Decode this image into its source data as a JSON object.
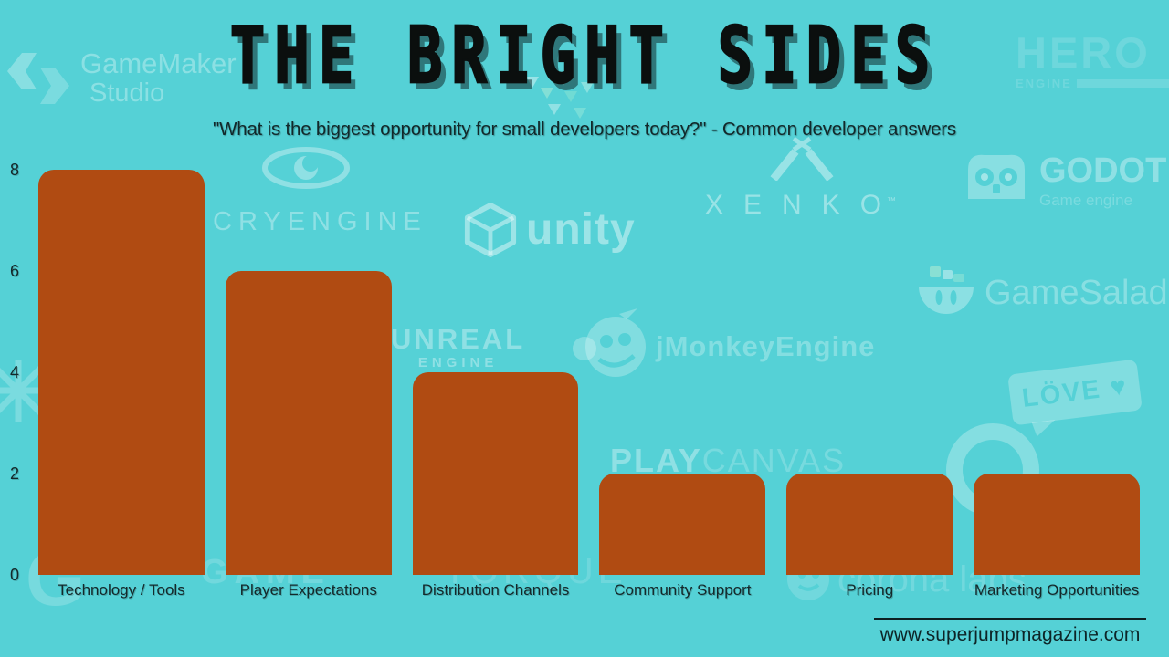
{
  "title": "THE BRIGHT SIDES",
  "subtitle": "\"What is the biggest opportunity for small developers today?\" - Common developer answers",
  "chart_data": {
    "type": "bar",
    "title": "THE BRIGHT SIDES",
    "subtitle": "\"What is the biggest opportunity for small developers today?\" - Common developer answers",
    "categories": [
      "Technology / Tools",
      "Player Expectations",
      "Distribution Channels",
      "Community Support",
      "Pricing",
      "Marketing Opportunities"
    ],
    "values": [
      8,
      6,
      4,
      2,
      2,
      2
    ],
    "xlabel": "",
    "ylabel": "",
    "ylim": [
      0,
      8
    ],
    "yticks": [
      0,
      2,
      4,
      6,
      8
    ],
    "grid": false,
    "legend": false,
    "bar_color": "#b04b12",
    "bar_corner_radius_px": 17
  },
  "footer": {
    "website": "www.superjumpmagazine.com"
  },
  "colors": {
    "background": "#55d1d6",
    "bar": "#b04b12",
    "title_text": "#0b0f0e",
    "label_text": "#14282a",
    "watermark": "rgba(255,255,255,0.30)"
  },
  "watermarks": {
    "gamemaker": {
      "line1": "GameMaker",
      "line2": "Studio"
    },
    "hero": {
      "text": "HERO",
      "sub": "ENGINE"
    },
    "cryengine": {
      "text": "CRYENGINE"
    },
    "unity": {
      "text": "unity"
    },
    "xenko": {
      "text": "XENKO",
      "tm": "™"
    },
    "godot": {
      "text": "GODOT",
      "sub": "Game engine"
    },
    "gamesalad": {
      "text": "GameSalad"
    },
    "unreal": {
      "line1": "UNREAL",
      "line2": "ENGINE"
    },
    "jmonkey": {
      "text": "jMonkeyEngine"
    },
    "love": {
      "text": "LÖVE ♥"
    },
    "playcanvas": {
      "part1": "PLAY",
      "part2": "CANVAS"
    },
    "game": {
      "text": "GAME"
    },
    "torque": {
      "text": "TORQUE"
    },
    "g_letter": {
      "text": "G"
    },
    "coronalabs": {
      "text": "corona labs"
    }
  }
}
